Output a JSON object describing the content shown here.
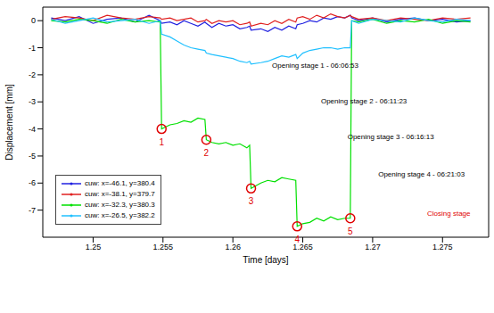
{
  "chart_data": {
    "type": "line",
    "x_label": "Time [days]",
    "y_label": "Displacement [mm]",
    "x": [
      1.247,
      1.248,
      1.249,
      1.25,
      1.251,
      1.252,
      1.253,
      1.254,
      1.2548,
      1.2549,
      1.2555,
      1.256,
      1.2565,
      1.257,
      1.2575,
      1.258,
      1.2581,
      1.2585,
      1.259,
      1.2595,
      1.26,
      1.2605,
      1.261,
      1.2612,
      1.2613,
      1.262,
      1.2625,
      1.263,
      1.2635,
      1.264,
      1.2645,
      1.2646,
      1.265,
      1.2655,
      1.266,
      1.2665,
      1.267,
      1.2675,
      1.268,
      1.2684,
      1.2685,
      1.269,
      1.27,
      1.271,
      1.272,
      1.273,
      1.274,
      1.275,
      1.276,
      1.277
    ],
    "series": [
      {
        "name": "cuw: x=-46.1, y=380.4",
        "color": "#2020e0",
        "values": [
          0.1,
          0.0,
          0.15,
          -0.1,
          0.05,
          0.1,
          -0.05,
          0.2,
          0.0,
          -0.1,
          -0.05,
          -0.15,
          0.0,
          -0.1,
          -0.2,
          -0.05,
          -0.1,
          -0.25,
          -0.1,
          -0.2,
          -0.15,
          -0.3,
          -0.25,
          -0.2,
          -0.35,
          -0.3,
          -0.4,
          -0.25,
          -0.35,
          -0.2,
          -0.3,
          -0.15,
          -0.1,
          0.0,
          -0.05,
          0.1,
          0.05,
          0.15,
          0.1,
          0.2,
          0.1,
          0.0,
          0.1,
          -0.05,
          0.05,
          0.1,
          0.0,
          0.05,
          -0.05,
          0.0
        ]
      },
      {
        "name": "cuw: x=-38.1, y=379.7",
        "color": "#e02020",
        "values": [
          0.05,
          0.15,
          0.1,
          0.0,
          0.2,
          0.1,
          0.05,
          0.15,
          0.1,
          0.05,
          0.1,
          0.0,
          0.05,
          0.1,
          -0.05,
          0.0,
          0.05,
          -0.1,
          0.0,
          -0.05,
          0.0,
          -0.15,
          -0.1,
          -0.05,
          -0.2,
          -0.1,
          -0.15,
          0.0,
          -0.1,
          0.05,
          -0.05,
          0.1,
          0.15,
          0.05,
          0.2,
          0.1,
          0.25,
          0.15,
          0.1,
          0.2,
          0.15,
          0.05,
          0.1,
          0.0,
          0.1,
          0.05,
          0.0,
          0.1,
          0.05,
          0.1
        ]
      },
      {
        "name": "cuw: x=-32.3, y=380.3",
        "color": "#00e000",
        "values": [
          0.0,
          -0.05,
          0.05,
          0.0,
          -0.1,
          0.05,
          -0.05,
          0.0,
          -0.05,
          -4.0,
          -3.85,
          -3.8,
          -3.7,
          -3.75,
          -3.6,
          -3.65,
          -4.4,
          -4.5,
          -4.55,
          -4.5,
          -4.6,
          -4.55,
          -4.7,
          -4.6,
          -6.2,
          -6.0,
          -5.9,
          -5.95,
          -5.8,
          -5.85,
          -5.9,
          -7.6,
          -7.5,
          -7.45,
          -7.3,
          -7.4,
          -7.25,
          -7.35,
          -7.3,
          -7.3,
          0.0,
          -0.05,
          0.05,
          -0.1,
          0.0,
          -0.05,
          0.05,
          -0.1,
          0.0,
          -0.05
        ]
      },
      {
        "name": "cuw: x=-26.5, y=382.2",
        "color": "#20c0ff",
        "values": [
          0.05,
          -0.1,
          0.0,
          0.1,
          -0.05,
          0.0,
          0.05,
          -0.1,
          0.0,
          -0.5,
          -0.6,
          -0.75,
          -0.9,
          -1.0,
          -1.05,
          -1.1,
          -1.2,
          -1.25,
          -1.3,
          -1.35,
          -1.4,
          -1.5,
          -1.55,
          -1.5,
          -1.6,
          -1.55,
          -1.5,
          -1.4,
          -1.3,
          -1.35,
          -1.25,
          -1.4,
          -1.2,
          -1.1,
          -1.05,
          -1.0,
          -1.0,
          -1.05,
          -1.0,
          -1.0,
          0.0,
          -0.1,
          0.05,
          0.0,
          -0.05,
          0.1,
          0.0,
          -0.05,
          0.05,
          0.0
        ]
      }
    ],
    "xlim": [
      1.2464,
      1.2783
    ],
    "xticks": [
      1.25,
      1.255,
      1.26,
      1.265,
      1.27,
      1.275
    ],
    "ylim": [
      -8,
      0.5
    ],
    "yticks": [
      -7,
      -6,
      -5,
      -4,
      -3,
      -2,
      -1,
      0
    ],
    "grid": false,
    "legend": "lower left",
    "markers": [
      {
        "x": 1.2549,
        "y": -4.0,
        "label": "1",
        "color": "#e00000"
      },
      {
        "x": 1.2581,
        "y": -4.4,
        "label": "2",
        "color": "#e00000"
      },
      {
        "x": 1.2613,
        "y": -6.2,
        "label": "3",
        "color": "#e00000"
      },
      {
        "x": 1.2646,
        "y": -7.6,
        "label": "4",
        "color": "#e00000"
      },
      {
        "x": 1.2684,
        "y": -7.3,
        "label": "5",
        "color": "#e00000"
      }
    ],
    "annotations": [
      {
        "x": 1.2628,
        "y": -1.65,
        "text": "Opening stage 1 - 06:06:53",
        "color": "#000000"
      },
      {
        "x": 1.2663,
        "y": -2.97,
        "text": "Opening stage 2 - 06:11:23",
        "color": "#000000"
      },
      {
        "x": 1.2682,
        "y": -4.27,
        "text": "Opening stage 3 - 06:16:13",
        "color": "#000000"
      },
      {
        "x": 1.2704,
        "y": -5.68,
        "text": "Opening stage 4 - 06:21:03",
        "color": "#000000"
      },
      {
        "x": 1.2739,
        "y": -7.1,
        "text": "Closing stage",
        "color": "#e00000"
      }
    ]
  }
}
